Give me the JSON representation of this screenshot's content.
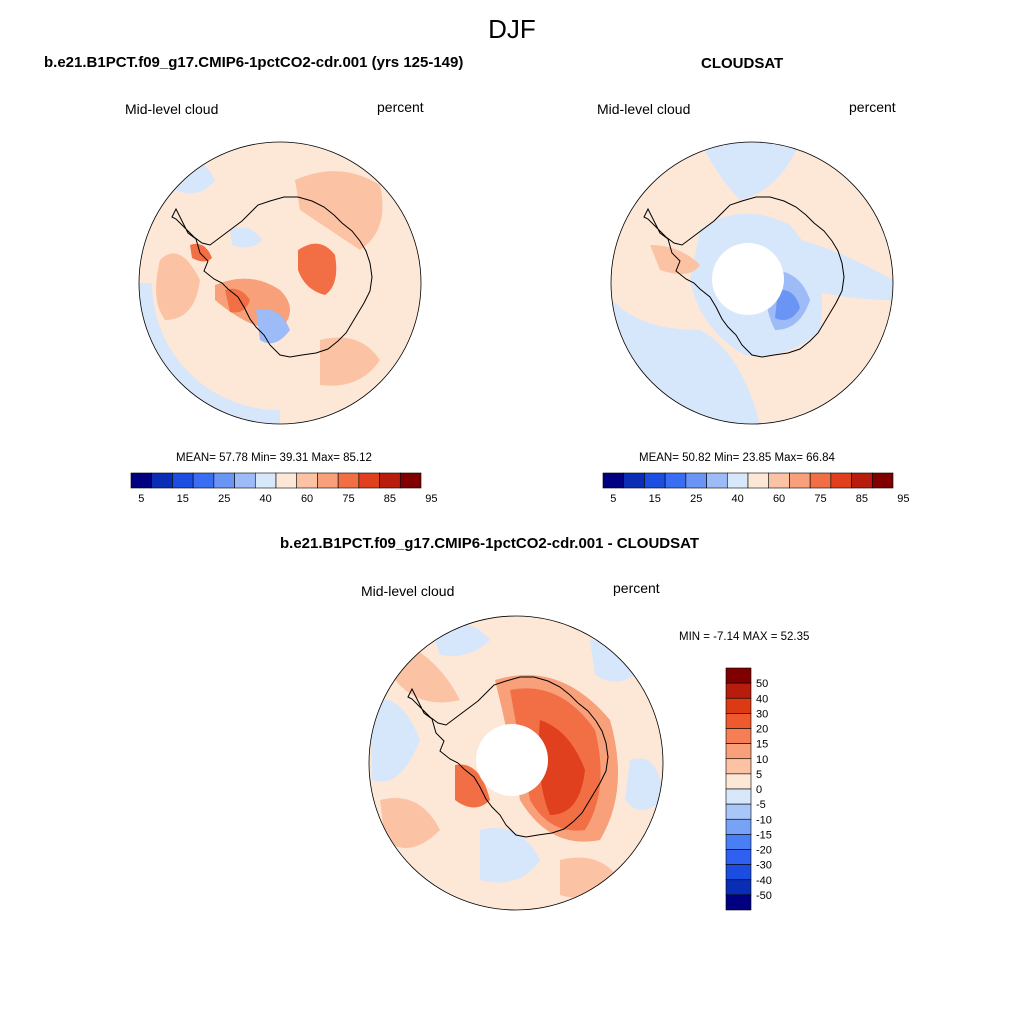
{
  "figure": {
    "title": "DJF"
  },
  "panels": [
    {
      "title": "b.e21.B1PCT.f09_g17.CMIP6-1pctCO2-cdr.001 (yrs 125-149)",
      "left_label": "Mid-level cloud",
      "right_label": "percent",
      "stats": "MEAN=  57.78  Min=  39.31  Max=  85.12"
    },
    {
      "title": "CLOUDSAT",
      "left_label": "Mid-level cloud",
      "right_label": "percent",
      "stats": "MEAN=  50.82  Min=  23.85  Max=  66.84"
    },
    {
      "title": "b.e21.B1PCT.f09_g17.CMIP6-1pctCO2-cdr.001 - CLOUDSAT",
      "left_label": "Mid-level cloud",
      "right_label": "percent",
      "stats": "MIN =  -7.14 MAX =  52.35"
    }
  ],
  "colorbar_main": {
    "colors": [
      "#000080",
      "#0a2db5",
      "#1a4de0",
      "#3a6ef2",
      "#6a95f5",
      "#9cbbf7",
      "#d8e8fb",
      "#fde8d8",
      "#fbc3a4",
      "#f7a07a",
      "#f26f45",
      "#e0401e",
      "#b81c0c",
      "#800000"
    ],
    "tick_labels": [
      "5",
      "15",
      "25",
      "40",
      "60",
      "75",
      "85",
      "95"
    ]
  },
  "colorbar_diff": {
    "colors": [
      "#000080",
      "#0a2db5",
      "#1a4de0",
      "#2f60ef",
      "#4a7ef4",
      "#78a2f6",
      "#a8c6f8",
      "#d8e8fb",
      "#fde8d8",
      "#fbc3a4",
      "#f9a07a",
      "#f57e54",
      "#f0582e",
      "#dc3a14",
      "#b81c0c",
      "#800000"
    ],
    "tick_labels": [
      "50",
      "40",
      "30",
      "20",
      "15",
      "10",
      "5",
      "0",
      "-5",
      "-10",
      "-15",
      "-20",
      "-30",
      "-40",
      "-50"
    ]
  },
  "map_colors": {
    "bg": "#fde8d8",
    "ocean_blue": "#d6e6fb",
    "light_red": "#fbc3a4",
    "mid_red": "#f7a07a",
    "red": "#f26f45",
    "dark_red": "#e0401e",
    "blue": "#9cbbf7",
    "mid_blue": "#6a95f5"
  }
}
